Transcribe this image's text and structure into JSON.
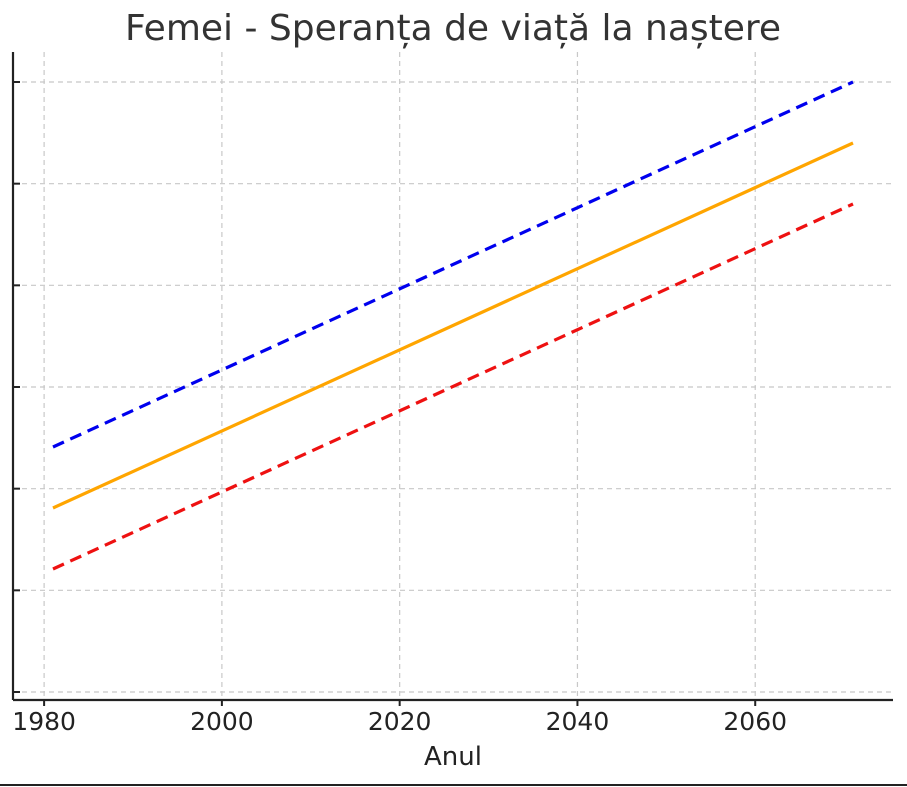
{
  "chart_data": {
    "type": "line",
    "title": "Femei - Speranța de viață la naștere",
    "xlabel": "Anul",
    "ylabel": "",
    "xlim": [
      1976.5,
      2075.5
    ],
    "ylim": [
      0,
      6
    ],
    "x_ticks": [
      1980,
      2000,
      2020,
      2040,
      2060
    ],
    "y_ticks": [
      0,
      1,
      2,
      3,
      4,
      5,
      6
    ],
    "y_tick_labels_visible": false,
    "grid": true,
    "legend": "none",
    "series": [
      {
        "x": [
          1981,
          2071
        ],
        "values": [
          2.41,
          6.0
        ],
        "color": "#0000ee",
        "dash": "dashed"
      },
      {
        "x": [
          1981,
          2071
        ],
        "values": [
          1.81,
          5.4
        ],
        "color": "#ffa500",
        "dash": "solid"
      },
      {
        "x": [
          1981,
          2071
        ],
        "values": [
          1.21,
          4.8
        ],
        "color": "#ee1111",
        "dash": "dashed"
      }
    ]
  }
}
